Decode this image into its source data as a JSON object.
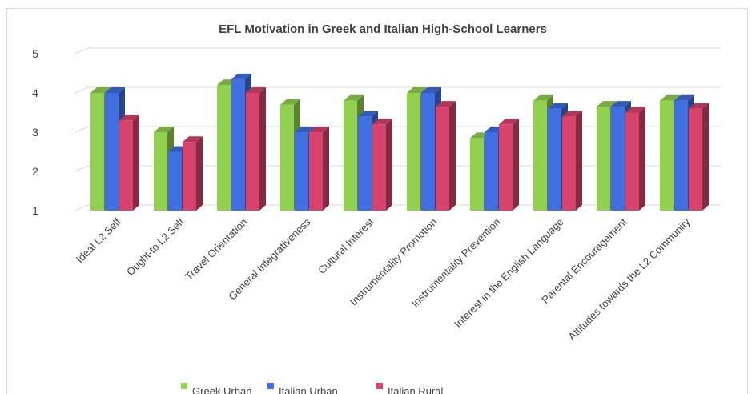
{
  "chart_data": {
    "type": "bar",
    "title": "EFL Motivation in Greek and Italian High-School Learners",
    "categories": [
      "Ideal L2 Self",
      "Ought-to L2 Self",
      "Travel Orientation",
      "General Integrativeness",
      "Cultural Interest",
      "Instrumentality Promotion",
      "Instrumentality Prevention",
      "Interest in the English Language",
      "Parental Encouragement",
      "Attitudes towards the L2 Community"
    ],
    "series": [
      {
        "name": "Greek Urban",
        "color": "#92d050",
        "values": [
          4.0,
          3.0,
          4.2,
          3.7,
          3.8,
          4.0,
          2.85,
          3.8,
          3.65,
          3.8
        ]
      },
      {
        "name": "Italian Urban",
        "color": "#3f6fe0",
        "values": [
          4.0,
          2.5,
          4.35,
          3.0,
          3.4,
          4.0,
          3.0,
          3.6,
          3.65,
          3.8
        ]
      },
      {
        "name": "Italian Rural",
        "color": "#d8436e",
        "values": [
          3.3,
          2.75,
          4.0,
          3.0,
          3.2,
          3.65,
          3.2,
          3.4,
          3.5,
          3.6
        ]
      }
    ],
    "ylim": [
      1,
      5
    ],
    "yticks": [
      "1",
      "2",
      "3",
      "4",
      "5"
    ],
    "grid": true,
    "legend_position": "bottom",
    "style": "3d-column"
  }
}
